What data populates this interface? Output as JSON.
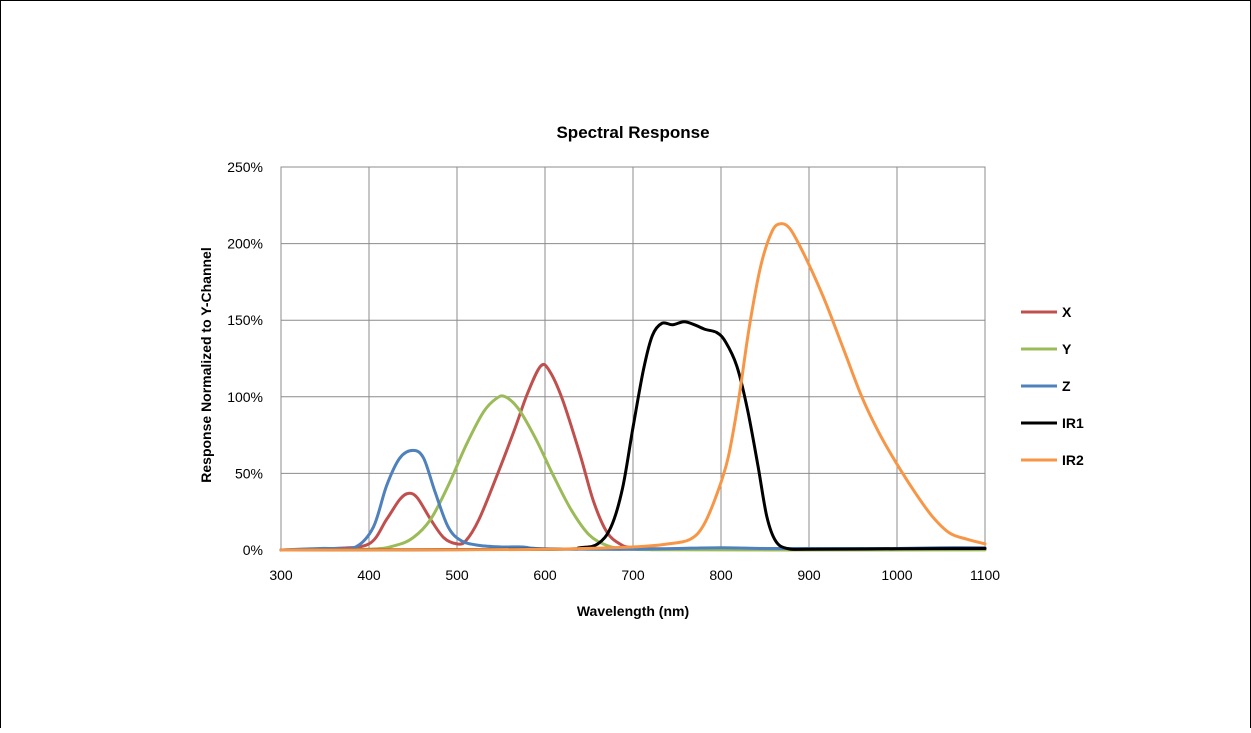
{
  "chart_data": {
    "type": "line",
    "title": "Spectral Response",
    "xlabel": "Wavelength (nm)",
    "ylabel": "Response Normalized to Y-Channel",
    "xlim": [
      300,
      1100
    ],
    "ylim": [
      0,
      2.5
    ],
    "x_ticks": [
      "300",
      "400",
      "500",
      "600",
      "700",
      "800",
      "900",
      "1000",
      "1100"
    ],
    "y_ticks": [
      "0%",
      "50%",
      "100%",
      "150%",
      "200%",
      "250%"
    ],
    "grid": true,
    "legend_position": "right",
    "series": [
      {
        "name": "X",
        "color": "#C0504D",
        "points": [
          [
            300,
            0
          ],
          [
            360,
            0.01
          ],
          [
            400,
            0.04
          ],
          [
            420,
            0.2
          ],
          [
            435,
            0.33
          ],
          [
            445,
            0.37
          ],
          [
            455,
            0.34
          ],
          [
            470,
            0.2
          ],
          [
            485,
            0.08
          ],
          [
            500,
            0.04
          ],
          [
            510,
            0.06
          ],
          [
            525,
            0.2
          ],
          [
            545,
            0.48
          ],
          [
            565,
            0.78
          ],
          [
            580,
            1.02
          ],
          [
            595,
            1.2
          ],
          [
            605,
            1.17
          ],
          [
            620,
            0.98
          ],
          [
            640,
            0.62
          ],
          [
            655,
            0.32
          ],
          [
            670,
            0.12
          ],
          [
            685,
            0.04
          ],
          [
            700,
            0.015
          ],
          [
            750,
            0.005
          ],
          [
            800,
            0.003
          ],
          [
            850,
            0.002
          ],
          [
            900,
            0.002
          ],
          [
            1000,
            0.002
          ],
          [
            1100,
            0.003
          ]
        ]
      },
      {
        "name": "Y",
        "color": "#9BBB59",
        "points": [
          [
            300,
            0
          ],
          [
            400,
            0.005
          ],
          [
            430,
            0.03
          ],
          [
            450,
            0.08
          ],
          [
            470,
            0.2
          ],
          [
            490,
            0.42
          ],
          [
            510,
            0.68
          ],
          [
            530,
            0.9
          ],
          [
            545,
            0.99
          ],
          [
            555,
            1.0
          ],
          [
            570,
            0.92
          ],
          [
            590,
            0.72
          ],
          [
            610,
            0.48
          ],
          [
            630,
            0.26
          ],
          [
            650,
            0.1
          ],
          [
            670,
            0.03
          ],
          [
            690,
            0.008
          ],
          [
            720,
            0.002
          ],
          [
            800,
            0.001
          ],
          [
            1000,
            0.001
          ],
          [
            1100,
            0.001
          ]
        ]
      },
      {
        "name": "Z",
        "color": "#4F81BD",
        "points": [
          [
            300,
            0
          ],
          [
            345,
            0.01
          ],
          [
            360,
            0.01
          ],
          [
            385,
            0.02
          ],
          [
            405,
            0.15
          ],
          [
            420,
            0.42
          ],
          [
            435,
            0.6
          ],
          [
            450,
            0.65
          ],
          [
            462,
            0.6
          ],
          [
            475,
            0.38
          ],
          [
            490,
            0.15
          ],
          [
            505,
            0.06
          ],
          [
            525,
            0.03
          ],
          [
            550,
            0.02
          ],
          [
            575,
            0.02
          ],
          [
            590,
            0.01
          ],
          [
            650,
            0.005
          ],
          [
            700,
            0.005
          ],
          [
            750,
            0.01
          ],
          [
            800,
            0.015
          ],
          [
            850,
            0.01
          ],
          [
            900,
            0.01
          ],
          [
            950,
            0.01
          ],
          [
            1000,
            0.01
          ],
          [
            1050,
            0.015
          ],
          [
            1100,
            0.015
          ]
        ]
      },
      {
        "name": "IR1",
        "color": "#000000",
        "points": [
          [
            300,
            0
          ],
          [
            600,
            0.005
          ],
          [
            640,
            0.015
          ],
          [
            660,
            0.04
          ],
          [
            675,
            0.15
          ],
          [
            688,
            0.4
          ],
          [
            700,
            0.8
          ],
          [
            712,
            1.18
          ],
          [
            722,
            1.4
          ],
          [
            733,
            1.48
          ],
          [
            745,
            1.47
          ],
          [
            758,
            1.49
          ],
          [
            770,
            1.47
          ],
          [
            782,
            1.44
          ],
          [
            795,
            1.42
          ],
          [
            805,
            1.36
          ],
          [
            818,
            1.2
          ],
          [
            830,
            0.92
          ],
          [
            842,
            0.55
          ],
          [
            852,
            0.22
          ],
          [
            862,
            0.06
          ],
          [
            875,
            0.01
          ],
          [
            900,
            0.005
          ],
          [
            1000,
            0.008
          ],
          [
            1100,
            0.01
          ]
        ]
      },
      {
        "name": "IR2",
        "color": "#F79646",
        "points": [
          [
            300,
            0
          ],
          [
            500,
            0.002
          ],
          [
            600,
            0.005
          ],
          [
            700,
            0.02
          ],
          [
            740,
            0.04
          ],
          [
            765,
            0.07
          ],
          [
            780,
            0.16
          ],
          [
            795,
            0.36
          ],
          [
            808,
            0.6
          ],
          [
            820,
            0.98
          ],
          [
            832,
            1.45
          ],
          [
            845,
            1.85
          ],
          [
            858,
            2.08
          ],
          [
            868,
            2.13
          ],
          [
            878,
            2.1
          ],
          [
            890,
            1.98
          ],
          [
            905,
            1.8
          ],
          [
            920,
            1.6
          ],
          [
            940,
            1.3
          ],
          [
            960,
            1.0
          ],
          [
            980,
            0.76
          ],
          [
            1000,
            0.56
          ],
          [
            1020,
            0.38
          ],
          [
            1040,
            0.22
          ],
          [
            1060,
            0.11
          ],
          [
            1080,
            0.07
          ],
          [
            1100,
            0.04
          ]
        ]
      }
    ]
  }
}
